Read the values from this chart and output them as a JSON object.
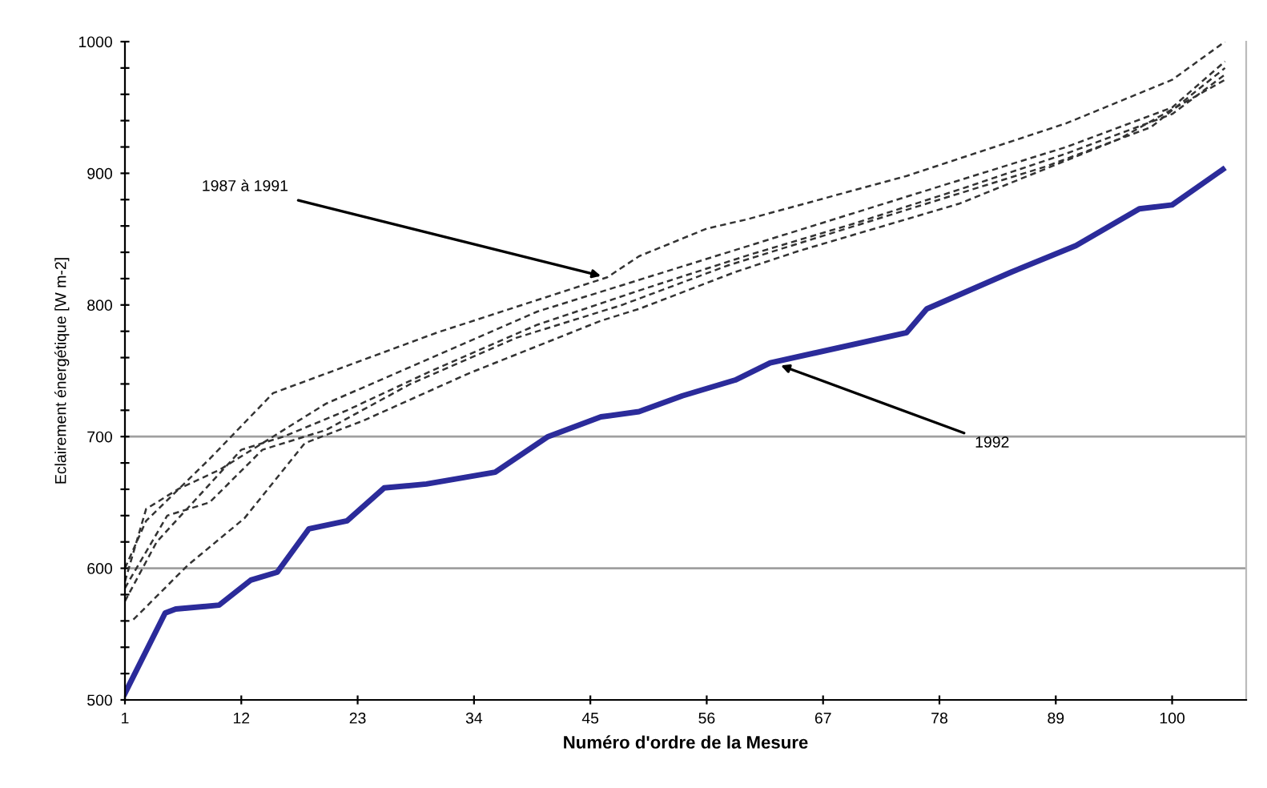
{
  "chart_data": {
    "type": "line",
    "xlabel": "Numéro d'ordre de la Mesure",
    "ylabel": "Eclairement énergétique [W m-2]",
    "xlim": [
      1,
      107
    ],
    "xticks": [
      1,
      12,
      23,
      34,
      45,
      56,
      67,
      78,
      89,
      100
    ],
    "ylim": [
      500,
      1000
    ],
    "yticks": [
      500,
      {
        "value": 520,
        "label": null
      },
      {
        "value": 540,
        "label": null
      },
      {
        "value": 560,
        "label": null
      },
      {
        "value": 580,
        "label": null
      },
      600,
      {
        "value": 620,
        "label": null
      },
      {
        "value": 640,
        "label": null
      },
      {
        "value": 660,
        "label": null
      },
      {
        "value": 680,
        "label": null
      },
      700,
      {
        "value": 720,
        "label": null
      },
      {
        "value": 740,
        "label": null
      },
      {
        "value": 760,
        "label": null
      },
      {
        "value": 780,
        "label": null
      },
      800,
      {
        "value": 820,
        "label": null
      },
      {
        "value": 840,
        "label": null
      },
      {
        "value": 860,
        "label": null
      },
      {
        "value": 880,
        "label": null
      },
      900,
      {
        "value": 920,
        "label": null
      },
      {
        "value": 940,
        "label": null
      },
      {
        "value": 960,
        "label": null
      },
      {
        "value": 980,
        "label": null
      },
      1000
    ],
    "grid": false,
    "legend": false,
    "ref_lines": [
      {
        "axis": "y",
        "value": 600,
        "color": "#a0a0a0"
      },
      {
        "axis": "y",
        "value": 700,
        "color": "#a0a0a0"
      }
    ],
    "series": [
      {
        "color": "#333333",
        "line_style": "dashed",
        "x": [
          1,
          3,
          9,
          15,
          30.5,
          46.6,
          49.6,
          56,
          59.8,
          74.9,
          90,
          100,
          105
        ],
        "values": [
          600,
          636,
          683,
          733,
          779,
          821,
          837,
          858,
          865,
          898,
          938,
          971,
          1000
        ]
      },
      {
        "color": "#333333",
        "line_style": "dashed",
        "x": [
          1,
          3,
          6,
          10,
          15,
          20,
          30,
          40,
          50,
          60,
          70,
          80,
          90,
          100,
          105
        ],
        "values": [
          590,
          645,
          660,
          675,
          700,
          725,
          760,
          795,
          820,
          845,
          870,
          895,
          920,
          950,
          985
        ]
      },
      {
        "color": "#333333",
        "line_style": "dashed",
        "x": [
          1,
          4,
          8,
          12,
          16,
          22,
          30,
          40,
          50,
          60,
          70,
          80,
          90,
          100,
          105
        ],
        "values": [
          575,
          620,
          655,
          690,
          700,
          720,
          750,
          785,
          812,
          838,
          862,
          888,
          915,
          945,
          975
        ]
      },
      {
        "color": "#333333",
        "line_style": "dashed",
        "x": [
          1,
          5,
          9,
          14,
          20,
          28,
          38,
          48,
          58,
          68,
          78,
          88,
          98,
          105
        ],
        "values": [
          585,
          640,
          650,
          690,
          705,
          740,
          775,
          800,
          830,
          855,
          880,
          905,
          935,
          980
        ]
      },
      {
        "color": "#333333",
        "line_style": "dashed",
        "x": [
          1.8,
          6.9,
          12.3,
          18,
          23.5,
          33.5,
          46,
          49.6,
          58.7,
          64.7,
          79.9,
          95,
          105
        ],
        "values": [
          561,
          602,
          638,
          695,
          712,
          748,
          788,
          797,
          825,
          841,
          877,
          926,
          971
        ]
      },
      {
        "color": "#2b2b9a",
        "line_style": "solid",
        "x": [
          1,
          4.8,
          5.8,
          9.9,
          12.9,
          15.4,
          18.4,
          22,
          25.5,
          29.5,
          36,
          41,
          46,
          49.6,
          53.7,
          58.7,
          62,
          74.9,
          76.8,
          84.8,
          90.9,
          96.9,
          100,
          104.8
        ],
        "values": [
          505,
          566,
          569,
          572,
          591,
          597,
          630,
          636,
          661,
          664,
          673,
          700,
          715,
          719,
          731,
          743,
          756,
          779,
          797,
          825,
          845,
          873,
          876,
          903
        ]
      }
    ],
    "annotations": [
      {
        "text": "1987 à 1991",
        "x": 46,
        "y": 822
      },
      {
        "text": "1992",
        "x": 63,
        "y": 754
      }
    ]
  }
}
